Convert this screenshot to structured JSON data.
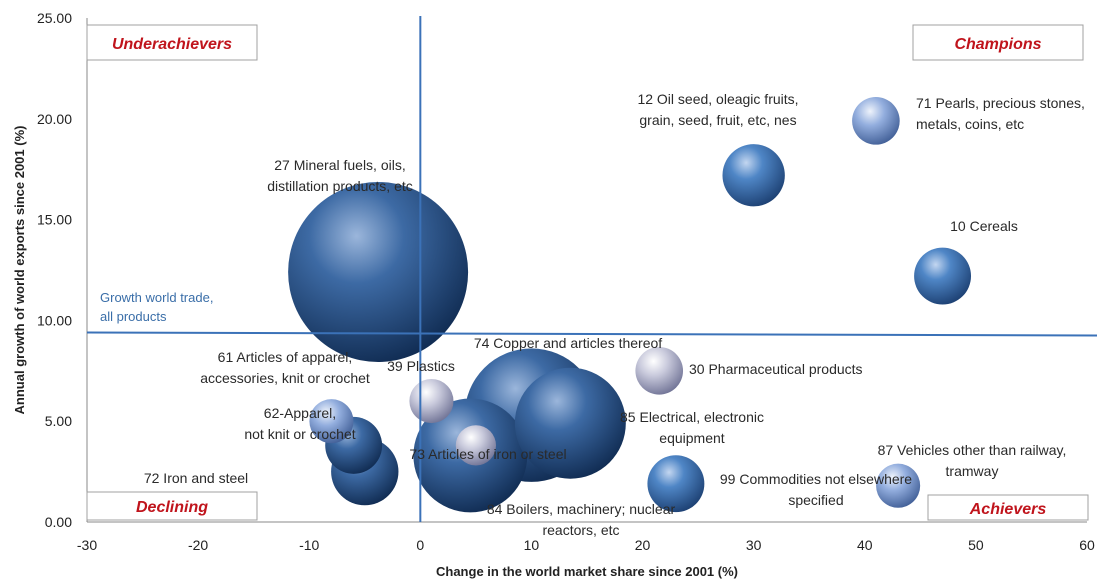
{
  "chart_data": {
    "type": "scatter",
    "subtype": "bubble",
    "title": "",
    "xlabel": "Change in the world market share since 2001 (%)",
    "ylabel": "Annual growth of world exports since 2001 (%)",
    "xlim": [
      -30,
      60
    ],
    "ylim": [
      0,
      25
    ],
    "x_ticks": [
      -30,
      -20,
      -10,
      0,
      10,
      20,
      30,
      40,
      50,
      60
    ],
    "y_ticks": [
      0,
      5,
      10,
      15,
      20,
      25
    ],
    "y_tick_labels": [
      "0.00",
      "5.00",
      "10.00",
      "15.00",
      "20.00",
      "25.00"
    ],
    "grid": false,
    "reference_lines": {
      "vertical_x": 0,
      "horizontal_y": 9.4,
      "horizontal_label": [
        "Growth world trade,",
        "all products"
      ]
    },
    "quadrants": {
      "top_left": "Underachievers",
      "top_right": "Champions",
      "bottom_left": "Declining",
      "bottom_right": "Achievers"
    },
    "bubbles": [
      {
        "label": [
          "27 Mineral fuels, oils,",
          "distillation products, etc"
        ],
        "x": -3.8,
        "y": 12.4,
        "size": 100,
        "shade": "dark"
      },
      {
        "label": [
          "12 Oil seed, oleagic fruits,",
          "grain, seed, fruit, etc, nes"
        ],
        "x": 30,
        "y": 17.2,
        "size": 12,
        "shade": "mid"
      },
      {
        "label": [
          "71 Pearls, precious stones,",
          "metals, coins, etc"
        ],
        "x": 41,
        "y": 19.9,
        "size": 7,
        "shade": "light"
      },
      {
        "label": [
          "10 Cereals"
        ],
        "x": 47,
        "y": 12.2,
        "size": 10,
        "shade": "mid"
      },
      {
        "label": [
          "74 Copper and articles thereof"
        ],
        "x": 10,
        "y": 5.3,
        "size": 55,
        "shade": "dark"
      },
      {
        "label": [
          "85 Electrical, electronic",
          "equipment"
        ],
        "x": 13.5,
        "y": 4.9,
        "size": 38,
        "shade": "dark"
      },
      {
        "label": [
          "30 Pharmaceutical products"
        ],
        "x": 21.5,
        "y": 7.5,
        "size": 7,
        "shade": "pale"
      },
      {
        "label": [
          "39 Plastics"
        ],
        "x": 1,
        "y": 6,
        "size": 6,
        "shade": "pale"
      },
      {
        "label": [
          "61 Articles of apparel,",
          "accessories, knit or crochet"
        ],
        "x": -6,
        "y": 3.8,
        "size": 10,
        "shade": "dark"
      },
      {
        "label": [
          "62-Apparel,",
          "not knit or crochet"
        ],
        "x": -8,
        "y": 5,
        "size": 6,
        "shade": "light"
      },
      {
        "label": [
          "72 Iron and steel"
        ],
        "x": -5,
        "y": 2.5,
        "size": 14,
        "shade": "dark"
      },
      {
        "label": [
          "73 Articles of iron or steel"
        ],
        "x": 5,
        "y": 3.8,
        "size": 5,
        "shade": "pale"
      },
      {
        "label": [
          "84 Boilers, machinery; nuclear",
          "reactors, etc"
        ],
        "x": 4.5,
        "y": 3.3,
        "size": 40,
        "shade": "dark"
      },
      {
        "label": [
          "99 Commodities not elsewhere",
          "specified"
        ],
        "x": 23,
        "y": 1.9,
        "size": 10,
        "shade": "mid"
      },
      {
        "label": [
          "87 Vehicles other than railway,",
          "tramway"
        ],
        "x": 43,
        "y": 1.8,
        "size": 6,
        "shade": "light"
      }
    ]
  },
  "colors": {
    "axis": "#888888",
    "reference_line": "#3b72b8",
    "quadrant_text": "#c0141c",
    "quadrant_border": "#a0a0a0",
    "bubble_dark": "#1c4a85",
    "bubble_mid": "#2f69b0",
    "bubble_light": "#7e9ed0",
    "bubble_pale": "#b8bcd4"
  }
}
